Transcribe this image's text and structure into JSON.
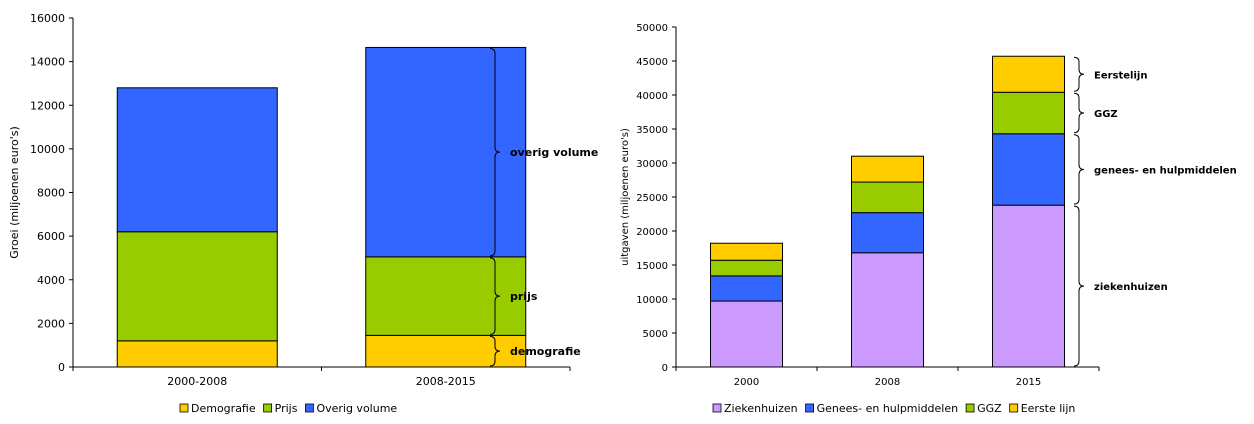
{
  "chart_data": [
    {
      "type": "bar",
      "stacked": true,
      "categories": [
        "2000-2008",
        "2008-2015"
      ],
      "series": [
        {
          "name": "Demografie",
          "color": "#ffcc00",
          "values": [
            1200,
            1450
          ]
        },
        {
          "name": "Prijs",
          "color": "#99cc00",
          "values": [
            5000,
            3600
          ]
        },
        {
          "name": "Overig volume",
          "color": "#3366ff",
          "values": [
            6600,
            9600
          ]
        }
      ],
      "ylabel": "Groei (miljoenen euro's)",
      "xlabel": "",
      "ylim": [
        0,
        16000
      ],
      "yticks": [
        0,
        2000,
        4000,
        6000,
        8000,
        10000,
        12000,
        14000,
        16000
      ],
      "grid": false,
      "legend": "bottom",
      "annotations": [
        {
          "label": "demografie",
          "from": 0,
          "to": 1450
        },
        {
          "label": "prijs",
          "from": 1450,
          "to": 5050
        },
        {
          "label": "overig volume",
          "from": 5050,
          "to": 14650
        }
      ]
    },
    {
      "type": "bar",
      "stacked": true,
      "categories": [
        "2000",
        "2008",
        "2015"
      ],
      "series": [
        {
          "name": "Ziekenhuizen",
          "color": "#cc99ff",
          "values": [
            9700,
            16800,
            23800
          ]
        },
        {
          "name": "Genees-  en hulpmiddelen",
          "color": "#3366ff",
          "values": [
            3700,
            5900,
            10500
          ]
        },
        {
          "name": "GGZ",
          "color": "#99cc00",
          "values": [
            2300,
            4500,
            6100
          ]
        },
        {
          "name": "Eerste lijn",
          "color": "#ffcc00",
          "values": [
            2500,
            3800,
            5300
          ]
        }
      ],
      "ylabel": "uitgaven (miljoenen euro's)",
      "xlabel": "",
      "ylim": [
        0,
        50000
      ],
      "yticks": [
        0,
        5000,
        10000,
        15000,
        20000,
        25000,
        30000,
        35000,
        40000,
        45000,
        50000
      ],
      "grid": false,
      "legend": "bottom",
      "annotations": [
        {
          "label": "ziekenhuizen",
          "from": 0,
          "to": 23800
        },
        {
          "label": "genees- en hulpmiddelen",
          "from": 23800,
          "to": 34300
        },
        {
          "label": "GGZ",
          "from": 34300,
          "to": 40400
        },
        {
          "label": "Eerstelijn",
          "from": 40400,
          "to": 45700
        }
      ]
    }
  ]
}
